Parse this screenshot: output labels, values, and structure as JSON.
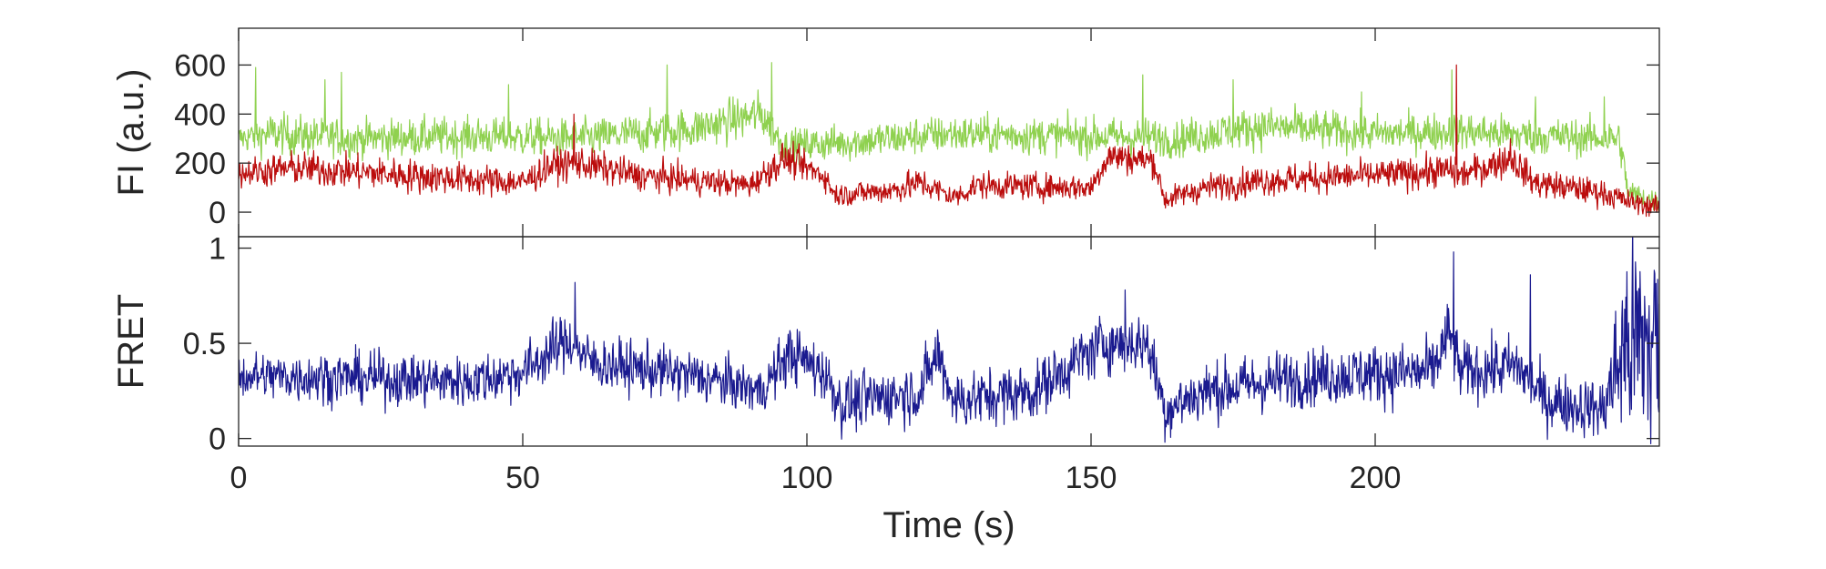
{
  "chart_data": [
    {
      "type": "line",
      "ylabel": "FI (a.u.)",
      "xlabel": "",
      "xlim": [
        0,
        250
      ],
      "ylim": [
        -100,
        750
      ],
      "yticks": [
        0,
        200,
        400,
        600
      ],
      "xticks": [
        0,
        50,
        100,
        150,
        200
      ],
      "show_xtick_labels": false,
      "sample_interval": 0.1,
      "series": [
        {
          "color": "#8fd14f",
          "segments": [
            [
              0,
              300,
              36
            ],
            [
              5,
              320,
              55
            ],
            [
              20,
              300,
              50
            ],
            [
              40,
              310,
              50
            ],
            [
              60,
              300,
              50
            ],
            [
              80,
              340,
              55
            ],
            [
              92,
              400,
              60
            ],
            [
              96,
              270,
              45
            ],
            [
              110,
              290,
              50
            ],
            [
              125,
              320,
              50
            ],
            [
              150,
              310,
              50
            ],
            [
              165,
              300,
              50
            ],
            [
              180,
              350,
              55
            ],
            [
              200,
              320,
              50
            ],
            [
              215,
              330,
              50
            ],
            [
              230,
              310,
              50
            ],
            [
              243,
              300,
              50
            ],
            [
              244.5,
              80,
              35
            ],
            [
              250,
              40,
              30
            ]
          ],
          "spikes": [
            [
              3.0,
              590
            ],
            [
              15.2,
              540
            ],
            [
              18.1,
              570
            ],
            [
              47.5,
              520
            ],
            [
              75.4,
              600
            ],
            [
              93.8,
              610
            ],
            [
              159.1,
              560
            ],
            [
              175.0,
              540
            ],
            [
              197.6,
              490
            ],
            [
              213.5,
              580
            ],
            [
              228.2,
              470
            ],
            [
              240.3,
              470
            ]
          ]
        },
        {
          "color": "#bb0d0d",
          "segments": [
            [
              0,
              160,
              38
            ],
            [
              10,
              180,
              45
            ],
            [
              30,
              150,
              45
            ],
            [
              50,
              120,
              40
            ],
            [
              55,
              190,
              45
            ],
            [
              60,
              200,
              45
            ],
            [
              70,
              150,
              40
            ],
            [
              90,
              110,
              35
            ],
            [
              96,
              220,
              45
            ],
            [
              103,
              150,
              35
            ],
            [
              105,
              70,
              30
            ],
            [
              115,
              90,
              35
            ],
            [
              120,
              120,
              40
            ],
            [
              126,
              60,
              30
            ],
            [
              130,
              110,
              35
            ],
            [
              150,
              100,
              35
            ],
            [
              153,
              230,
              45
            ],
            [
              161,
              210,
              40
            ],
            [
              163,
              50,
              30
            ],
            [
              170,
              100,
              35
            ],
            [
              180,
              130,
              40
            ],
            [
              200,
              150,
              40
            ],
            [
              213,
              170,
              45
            ],
            [
              215,
              150,
              40
            ],
            [
              224,
              220,
              45
            ],
            [
              228,
              120,
              40
            ],
            [
              240,
              80,
              35
            ],
            [
              245,
              40,
              30
            ],
            [
              250,
              20,
              28
            ]
          ],
          "spikes": [
            [
              59.0,
              400
            ],
            [
              214.3,
              600
            ],
            [
              223.8,
              300
            ]
          ]
        }
      ]
    },
    {
      "type": "line",
      "ylabel": "FRET",
      "xlabel": "Time (s)",
      "xlim": [
        0,
        250
      ],
      "ylim": [
        -0.04,
        1.06
      ],
      "yticks": [
        0,
        0.5,
        1
      ],
      "ytick_labels": [
        "0",
        "0.5",
        "1"
      ],
      "xticks": [
        0,
        50,
        100,
        150,
        200
      ],
      "xtick_labels": [
        "0",
        "50",
        "100",
        "150",
        "200"
      ],
      "sample_interval": 0.1,
      "series": [
        {
          "color": "#1a1a8f",
          "segments": [
            [
              0,
              0.33,
              0.08
            ],
            [
              20,
              0.32,
              0.09
            ],
            [
              40,
              0.3,
              0.09
            ],
            [
              50,
              0.35,
              0.09
            ],
            [
              58,
              0.52,
              0.1
            ],
            [
              62,
              0.4,
              0.09
            ],
            [
              80,
              0.33,
              0.09
            ],
            [
              92,
              0.25,
              0.08
            ],
            [
              97,
              0.45,
              0.1
            ],
            [
              103,
              0.35,
              0.1
            ],
            [
              106,
              0.18,
              0.1
            ],
            [
              120,
              0.25,
              0.1
            ],
            [
              123,
              0.45,
              0.11
            ],
            [
              126,
              0.2,
              0.1
            ],
            [
              140,
              0.25,
              0.1
            ],
            [
              152,
              0.5,
              0.1
            ],
            [
              160,
              0.5,
              0.1
            ],
            [
              163,
              0.15,
              0.1
            ],
            [
              170,
              0.25,
              0.1
            ],
            [
              190,
              0.33,
              0.1
            ],
            [
              210,
              0.35,
              0.11
            ],
            [
              213,
              0.55,
              0.12
            ],
            [
              215,
              0.35,
              0.1
            ],
            [
              225,
              0.38,
              0.11
            ],
            [
              230,
              0.2,
              0.1
            ],
            [
              240,
              0.15,
              0.1
            ],
            [
              244,
              0.5,
              0.35
            ],
            [
              250,
              0.5,
              0.45
            ]
          ],
          "spikes": [
            [
              59.2,
              0.82
            ],
            [
              213.8,
              0.98
            ],
            [
              227.3,
              0.86
            ],
            [
              156.0,
              0.78
            ]
          ]
        }
      ]
    }
  ]
}
